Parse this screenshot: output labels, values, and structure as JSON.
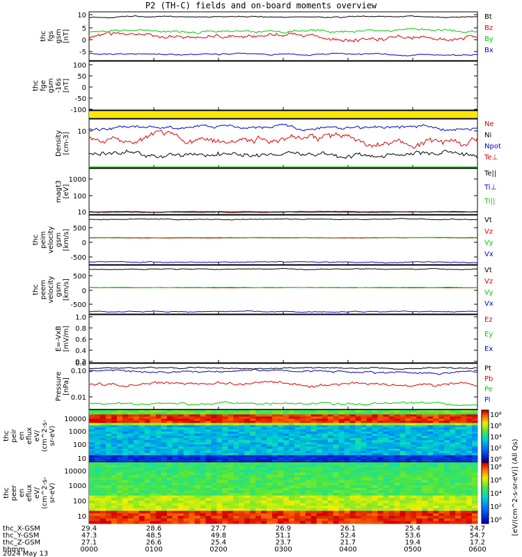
{
  "title": "P2 (TH-C) fields and on-board moments overview",
  "colors": {
    "black": "#000000",
    "red": "#e00000",
    "green": "#00c800",
    "blue": "#0000cc",
    "yellow": "#ffe600"
  },
  "chart_data": [
    {
      "type": "line",
      "ylabel": [
        "thc",
        "fgs",
        "gsm",
        "[nT]"
      ],
      "yticks": [
        "10",
        "5",
        "0",
        "-5"
      ],
      "ylim": [
        -8,
        11
      ],
      "series": [
        {
          "name": "Bt",
          "color": "black",
          "base": 9,
          "amp": 0.6
        },
        {
          "name": "Bz",
          "color": "red",
          "base": 1.5,
          "amp": 2.5
        },
        {
          "name": "By",
          "color": "green",
          "base": 3,
          "amp": 1.5
        },
        {
          "name": "Bx",
          "color": "blue",
          "base": -5.5,
          "amp": 0.8
        }
      ]
    },
    {
      "type": "line",
      "ylabel": [
        "thc",
        "fge",
        "gsm",
        "-16s",
        "[nT]"
      ],
      "yticks": [
        "100",
        "50",
        "0",
        "-50",
        "-100"
      ],
      "ylim": [
        -120,
        110
      ],
      "series": []
    },
    {
      "type": "bar",
      "ylabel": [],
      "yticks": [],
      "series": []
    },
    {
      "type": "line",
      "ylabel": [
        "Density",
        "[cm-3]"
      ],
      "yticks": [
        "10"
      ],
      "log": true,
      "series": [
        {
          "name": "Ne",
          "color": "red",
          "base": 0.55,
          "amp": 0.12
        },
        {
          "name": "Ni",
          "color": "black",
          "base": 0.25,
          "amp": 0.1
        },
        {
          "name": "Npot",
          "color": "blue",
          "base": 0.85,
          "amp": 0.08
        },
        {
          "name": "Te⊥",
          "color": "red"
        }
      ]
    },
    {
      "type": "line",
      "ylabel": [
        "magt3",
        "[eV]"
      ],
      "yticks": [
        "1000",
        "100",
        "10"
      ],
      "log": true,
      "series": [
        {
          "name": "Te||",
          "color": "black"
        },
        {
          "name": "Ti⊥",
          "color": "blue"
        },
        {
          "name": "Ti||",
          "color": "green"
        }
      ]
    },
    {
      "type": "line",
      "ylabel": [
        "thc",
        "peim",
        "velocity",
        "gsm",
        "[km/s]"
      ],
      "yticks": [
        "500",
        "0",
        "-500"
      ],
      "ylim": [
        -800,
        900
      ],
      "series": [
        {
          "name": "Vt",
          "color": "black"
        },
        {
          "name": "Vz",
          "color": "red"
        },
        {
          "name": "Vy",
          "color": "green"
        },
        {
          "name": "Vx",
          "color": "blue"
        }
      ]
    },
    {
      "type": "line",
      "ylabel": [
        "thc",
        "peem",
        "velocity",
        "gsm",
        "[km/s]"
      ],
      "yticks": [
        "500",
        "0",
        "-500"
      ],
      "ylim": [
        -800,
        900
      ],
      "series": [
        {
          "name": "Vt",
          "color": "black"
        },
        {
          "name": "Vz",
          "color": "red"
        },
        {
          "name": "Vy",
          "color": "green"
        },
        {
          "name": "Vx",
          "color": "blue"
        }
      ]
    },
    {
      "type": "line",
      "ylabel": [
        "E=-VxB",
        "[mV/m]"
      ],
      "yticks": [
        "1.0",
        "0.8",
        "0.6",
        "0.4",
        "0.2",
        "0.0"
      ],
      "ylim": [
        0,
        1
      ],
      "series": [
        {
          "name": "Ez",
          "color": "red"
        },
        {
          "name": "Ey",
          "color": "green"
        },
        {
          "name": "Ex",
          "color": "blue"
        }
      ]
    },
    {
      "type": "line",
      "ylabel": [
        "Pressure",
        "[nPa]"
      ],
      "yticks": [
        "0.10",
        "0.01"
      ],
      "log": true,
      "series": [
        {
          "name": "Pt",
          "color": "black"
        },
        {
          "name": "Pb",
          "color": "red"
        },
        {
          "name": "Pe",
          "color": "green"
        },
        {
          "name": "Pi",
          "color": "blue"
        }
      ]
    },
    {
      "type": "heatmap",
      "ylabel": [
        "thc",
        "peir",
        "en",
        "eflux",
        "eV/",
        "(cm^2-s-",
        "sr-eV)"
      ],
      "yticks": [
        "10000",
        "1000",
        "100",
        "10"
      ]
    },
    {
      "type": "heatmap",
      "ylabel": [
        "thc",
        "peer",
        "en",
        "eflux",
        "eV/",
        "(cm^2-s-",
        "sr-eV)"
      ],
      "yticks": [
        "10000",
        "1000",
        "100",
        "10"
      ]
    }
  ],
  "colorbar": {
    "label": "[eV/(cm^2-s-sr-eV)] (All Qs)",
    "ticks_top": [
      "10⁸",
      "10⁶",
      "10⁴",
      "10²",
      "10⁰"
    ],
    "ticks_bottom": [
      "10⁸",
      "10⁶",
      "10⁴",
      "10²",
      "10⁰"
    ]
  },
  "xaxis": {
    "rows": [
      {
        "label": "thc_X-GSM",
        "values": [
          "29.4",
          "28.6",
          "27.7",
          "26.9",
          "26.1",
          "25.4",
          "24.7"
        ]
      },
      {
        "label": "thc_Y-GSM",
        "values": [
          "47.3",
          "48.5",
          "49.8",
          "51.1",
          "52.4",
          "53.6",
          "54.7"
        ]
      },
      {
        "label": "thc_Z-GSM",
        "values": [
          "27.1",
          "26.6",
          "25.4",
          "23.7",
          "21.7",
          "19.4",
          "17.2"
        ]
      },
      {
        "label": "hhmm",
        "values": [
          "0000",
          "0100",
          "0200",
          "0300",
          "0400",
          "0500",
          "0600"
        ]
      }
    ],
    "date": "2024 May 13"
  }
}
